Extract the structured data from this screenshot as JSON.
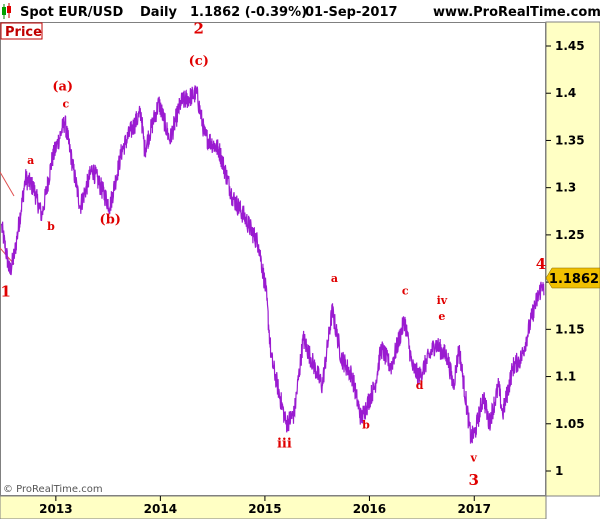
{
  "header": {
    "symbol": "Spot EUR/USD",
    "period": "Daily",
    "last": "1.1862 (-0.39%)",
    "date": "01-Sep-2017",
    "site": "www.ProRealTime.com"
  },
  "panel_label": "Price",
  "current_price_label": "1.1862",
  "copyright": "© ProRealTime.com",
  "colors": {
    "line": "#9a1bd0",
    "wave_labels": "#e00000",
    "axis_bg": "#ffffc4",
    "price_tag": "#f0c000"
  },
  "chart_data": {
    "type": "line",
    "title": "",
    "xlabel": "",
    "ylabel": "",
    "ylim": [
      0.97,
      1.49
    ],
    "xlim": [
      "2012-06-20",
      "2017-09-05"
    ],
    "x_ticks": [
      "2013",
      "2014",
      "2015",
      "2016",
      "2017"
    ],
    "y_ticks": [
      "1",
      "1.05",
      "1.1",
      "1.15",
      "1.2",
      "1.25",
      "1.3",
      "1.35",
      "1.4",
      "1.45"
    ],
    "series": [
      {
        "values": [
          [
            "2012-06-25",
            1.26
          ],
          [
            "2012-07-24",
            1.21
          ],
          [
            "2012-08-10",
            1.23
          ],
          [
            "2012-09-17",
            1.31
          ],
          [
            "2012-10-15",
            1.3
          ],
          [
            "2012-11-13",
            1.27
          ],
          [
            "2012-12-19",
            1.33
          ],
          [
            "2013-02-01",
            1.37
          ],
          [
            "2013-03-27",
            1.28
          ],
          [
            "2013-05-08",
            1.32
          ],
          [
            "2013-07-09",
            1.28
          ],
          [
            "2013-08-20",
            1.34
          ],
          [
            "2013-09-20",
            1.36
          ],
          [
            "2013-10-25",
            1.38
          ],
          [
            "2013-11-07",
            1.34
          ],
          [
            "2013-12-27",
            1.39
          ],
          [
            "2014-02-03",
            1.35
          ],
          [
            "2014-03-13",
            1.39
          ],
          [
            "2014-05-08",
            1.4
          ],
          [
            "2014-06-05",
            1.355
          ],
          [
            "2014-07-25",
            1.34
          ],
          [
            "2014-09-10",
            1.29
          ],
          [
            "2014-10-20",
            1.27
          ],
          [
            "2014-12-10",
            1.24
          ],
          [
            "2015-01-05",
            1.19
          ],
          [
            "2015-01-23",
            1.12
          ],
          [
            "2015-03-16",
            1.05
          ],
          [
            "2015-04-13",
            1.06
          ],
          [
            "2015-05-15",
            1.14
          ],
          [
            "2015-06-10",
            1.12
          ],
          [
            "2015-07-20",
            1.09
          ],
          [
            "2015-08-24",
            1.17
          ],
          [
            "2015-09-25",
            1.12
          ],
          [
            "2015-11-02",
            1.1
          ],
          [
            "2015-12-03",
            1.055
          ],
          [
            "2016-01-20",
            1.09
          ],
          [
            "2016-02-11",
            1.13
          ],
          [
            "2016-03-16",
            1.11
          ],
          [
            "2016-05-03",
            1.16
          ],
          [
            "2016-05-30",
            1.11
          ],
          [
            "2016-06-24",
            1.1
          ],
          [
            "2016-08-18",
            1.135
          ],
          [
            "2016-09-30",
            1.12
          ],
          [
            "2016-10-20",
            1.09
          ],
          [
            "2016-11-09",
            1.13
          ],
          [
            "2016-12-20",
            1.035
          ],
          [
            "2017-01-03",
            1.04
          ],
          [
            "2017-02-02",
            1.08
          ],
          [
            "2017-02-22",
            1.05
          ],
          [
            "2017-03-27",
            1.09
          ],
          [
            "2017-04-10",
            1.06
          ],
          [
            "2017-05-16",
            1.11
          ],
          [
            "2017-06-15",
            1.12
          ],
          [
            "2017-07-27",
            1.17
          ],
          [
            "2017-08-29",
            1.2
          ],
          [
            "2017-09-01",
            1.186
          ]
        ]
      }
    ],
    "annotations": [
      {
        "text": "1",
        "x": "2012-07-10",
        "y": 1.185,
        "size": "big"
      },
      {
        "text": "a",
        "x": "2012-10-05",
        "y": 1.325,
        "size": "small"
      },
      {
        "text": "b",
        "x": "2012-12-15",
        "y": 1.255,
        "size": "small"
      },
      {
        "text": "(a)",
        "x": "2013-01-25",
        "y": 1.403,
        "size": "med"
      },
      {
        "text": "c",
        "x": "2013-02-05",
        "y": 1.385,
        "size": "small"
      },
      {
        "text": "(b)",
        "x": "2013-07-10",
        "y": 1.262,
        "size": "med"
      },
      {
        "text": "2",
        "x": "2014-05-15",
        "y": 1.463,
        "size": "big"
      },
      {
        "text": "(c)",
        "x": "2014-05-15",
        "y": 1.43,
        "size": "med"
      },
      {
        "text": "iii",
        "x": "2015-03-10",
        "y": 1.025,
        "size": "med"
      },
      {
        "text": "a",
        "x": "2015-09-01",
        "y": 1.2,
        "size": "small"
      },
      {
        "text": "b",
        "x": "2015-12-20",
        "y": 1.045,
        "size": "small"
      },
      {
        "text": "c",
        "x": "2016-05-05",
        "y": 1.187,
        "size": "small"
      },
      {
        "text": "d",
        "x": "2016-06-24",
        "y": 1.087,
        "size": "small"
      },
      {
        "text": "iv",
        "x": "2016-09-10",
        "y": 1.177,
        "size": "small"
      },
      {
        "text": "e",
        "x": "2016-09-10",
        "y": 1.16,
        "size": "small"
      },
      {
        "text": "v",
        "x": "2016-12-30",
        "y": 1.01,
        "size": "small"
      },
      {
        "text": "3",
        "x": "2016-12-30",
        "y": 0.985,
        "size": "big"
      },
      {
        "text": "4",
        "x": "2017-08-22",
        "y": 1.214,
        "size": "big"
      }
    ]
  }
}
